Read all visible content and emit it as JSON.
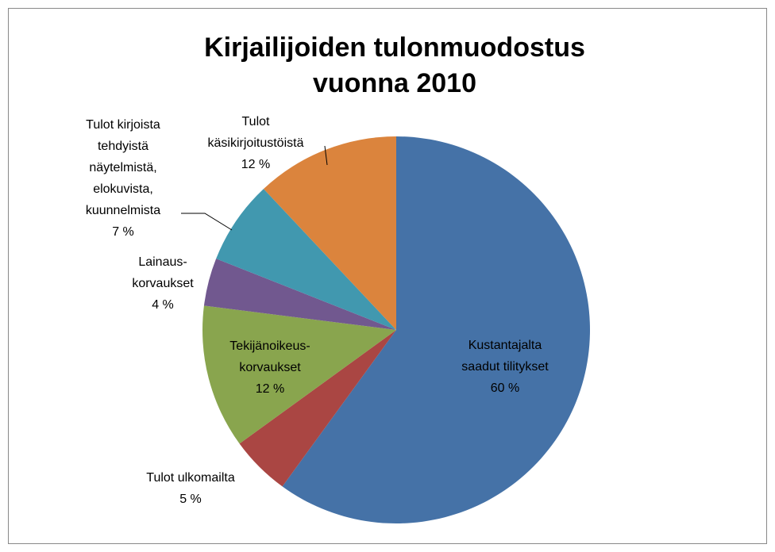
{
  "chart_data": {
    "type": "pie",
    "title": "Kirjailijoiden tulonmuodostus\nvuonna 2010",
    "categories": [
      "Kustantajalta\nsaadut tilitykset",
      "Tulot ulkomailta",
      "Tekijänoikeus-\nkorvaukset",
      "Lainaus-\nkorvaukset",
      "Tulot kirjoista\ntehdyistä\nnäytelmistä,\nelokuvista,\nkuunnelmista",
      "Tulot\nkäsikirjoitustöistä"
    ],
    "values": [
      60,
      5,
      12,
      4,
      7,
      12
    ],
    "value_labels": [
      "60 %",
      "5 %",
      "12 %",
      "4 %",
      "7 %",
      "12 %"
    ],
    "colors": [
      "#4572a7",
      "#aa4643",
      "#89a54e",
      "#71588f",
      "#4198af",
      "#db843d"
    ]
  }
}
